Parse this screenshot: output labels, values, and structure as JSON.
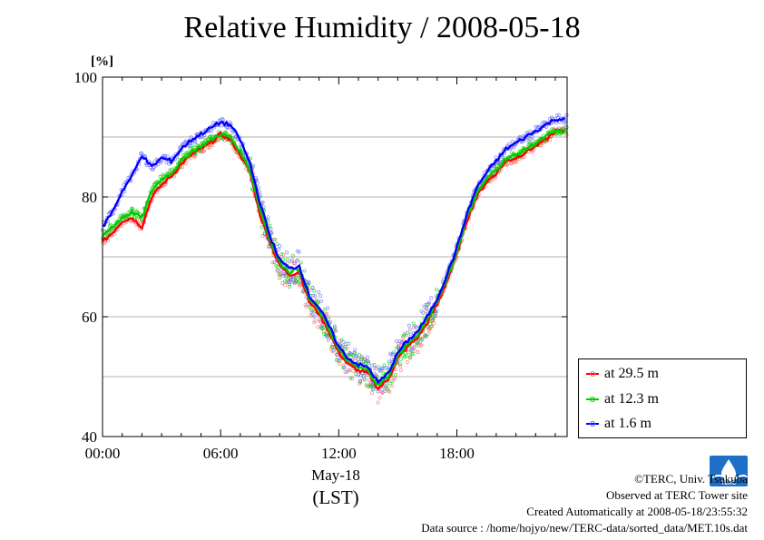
{
  "title": "Relative Humidity / 2008-05-18",
  "chart_data": {
    "type": "line",
    "title": "Relative Humidity / 2008-05-18",
    "ylabel": "[%]",
    "xlabel": "May-18",
    "xlabel2": "(LST)",
    "ylim": [
      40,
      100
    ],
    "xlim": [
      0,
      23.6
    ],
    "y_ticks": [
      "100",
      "80",
      "60",
      "40"
    ],
    "y_tick_values": [
      100,
      80,
      60,
      40
    ],
    "x_ticks": [
      "00:00",
      "06:00",
      "12:00",
      "18:00"
    ],
    "x_tick_values": [
      0,
      6,
      12,
      18
    ],
    "grid": true,
    "legend_placement": "lower-right outside",
    "series": [
      {
        "name": "at 29.5 m",
        "color": "#ff0000",
        "x": [
          0,
          0.5,
          1,
          1.5,
          2,
          2.5,
          3,
          3.5,
          4,
          4.5,
          5,
          5.5,
          6,
          6.5,
          7,
          7.5,
          8,
          8.5,
          9,
          9.5,
          10,
          10.5,
          11,
          11.5,
          12,
          12.5,
          13,
          13.5,
          14,
          14.5,
          15,
          15.5,
          16,
          16.5,
          17,
          17.5,
          18,
          18.5,
          19,
          19.5,
          20,
          20.5,
          21,
          21.5,
          22,
          22.5,
          23,
          23.5
        ],
        "values": [
          72.5,
          74,
          76,
          76.5,
          75,
          80,
          82,
          83.5,
          85.5,
          87,
          88,
          89,
          90.5,
          89.5,
          87,
          84,
          77,
          72.5,
          68.5,
          67,
          67.5,
          62.5,
          60.5,
          57.5,
          54,
          52,
          51,
          50.5,
          48,
          49.5,
          53,
          55,
          56.5,
          59,
          62,
          66,
          70.5,
          76,
          80,
          82.5,
          84,
          86,
          86.5,
          87.5,
          88.5,
          89.5,
          91,
          91
        ]
      },
      {
        "name": "at 12.3 m",
        "color": "#00cc00",
        "x": [
          0,
          0.5,
          1,
          1.5,
          2,
          2.5,
          3,
          3.5,
          4,
          4.5,
          5,
          5.5,
          6,
          6.5,
          7,
          7.5,
          8,
          8.5,
          9,
          9.5,
          10,
          10.5,
          11,
          11.5,
          12,
          12.5,
          13,
          13.5,
          14,
          14.5,
          15,
          15.5,
          16,
          16.5,
          17,
          17.5,
          18,
          18.5,
          19,
          19.5,
          20,
          20.5,
          21,
          21.5,
          22,
          22.5,
          23,
          23.5
        ],
        "values": [
          73.5,
          75,
          76.5,
          77.5,
          76.5,
          81,
          83,
          84,
          86,
          87.5,
          88.5,
          89.5,
          90.5,
          90,
          87.5,
          84.5,
          78,
          73,
          69,
          67.5,
          68,
          63,
          61,
          58,
          54.5,
          52.5,
          51.5,
          51,
          48.5,
          50,
          53.5,
          55.5,
          57,
          59.5,
          62.5,
          66.5,
          71,
          76.5,
          80.5,
          83,
          84.5,
          86.5,
          87,
          88,
          89,
          90,
          91,
          91
        ]
      },
      {
        "name": "at 1.6 m",
        "color": "#0000ff",
        "x": [
          0,
          0.5,
          1,
          1.5,
          2,
          2.5,
          3,
          3.5,
          4,
          4.5,
          5,
          5.5,
          6,
          6.5,
          7,
          7.5,
          8,
          8.5,
          9,
          9.5,
          10,
          10.5,
          11,
          11.5,
          12,
          12.5,
          13,
          13.5,
          14,
          14.5,
          15,
          15.5,
          16,
          16.5,
          17,
          17.5,
          18,
          18.5,
          19,
          19.5,
          20,
          20.5,
          21,
          21.5,
          22,
          22.5,
          23,
          23.5
        ],
        "values": [
          75,
          77.5,
          81,
          83.5,
          87,
          85,
          86.5,
          86,
          88,
          89.5,
          90.5,
          91.5,
          92.5,
          92,
          89.5,
          85.5,
          79,
          73.5,
          69.5,
          68,
          68.5,
          63.5,
          61.5,
          58.5,
          55,
          53,
          52,
          51.5,
          49,
          50.5,
          54,
          56,
          57.5,
          60,
          63,
          67,
          71.5,
          77,
          81.5,
          84,
          86,
          88,
          89,
          90,
          91,
          92,
          93,
          93
        ]
      }
    ]
  },
  "legend": {
    "items": [
      {
        "label": "at 29.5 m",
        "color": "#ff0000",
        "dot_color": "#ff6a6a"
      },
      {
        "label": "at 12.3 m",
        "color": "#00cc00",
        "dot_color": "#00cc00"
      },
      {
        "label": "at 1.6 m",
        "color": "#0000ff",
        "dot_color": "#6a6aff"
      }
    ]
  },
  "credits": {
    "line1": "©TERC, Univ. Tsukuba",
    "line2": "Observed at TERC Tower site",
    "line3": "Created Automatically at 2008-05-18/23:55:32",
    "line4": "Data source : /home/hojyo/new/TERC-data/sorted_data/MET.10s.dat",
    "logo_text": "TERC",
    "logo_color": "#1e6fc8"
  }
}
